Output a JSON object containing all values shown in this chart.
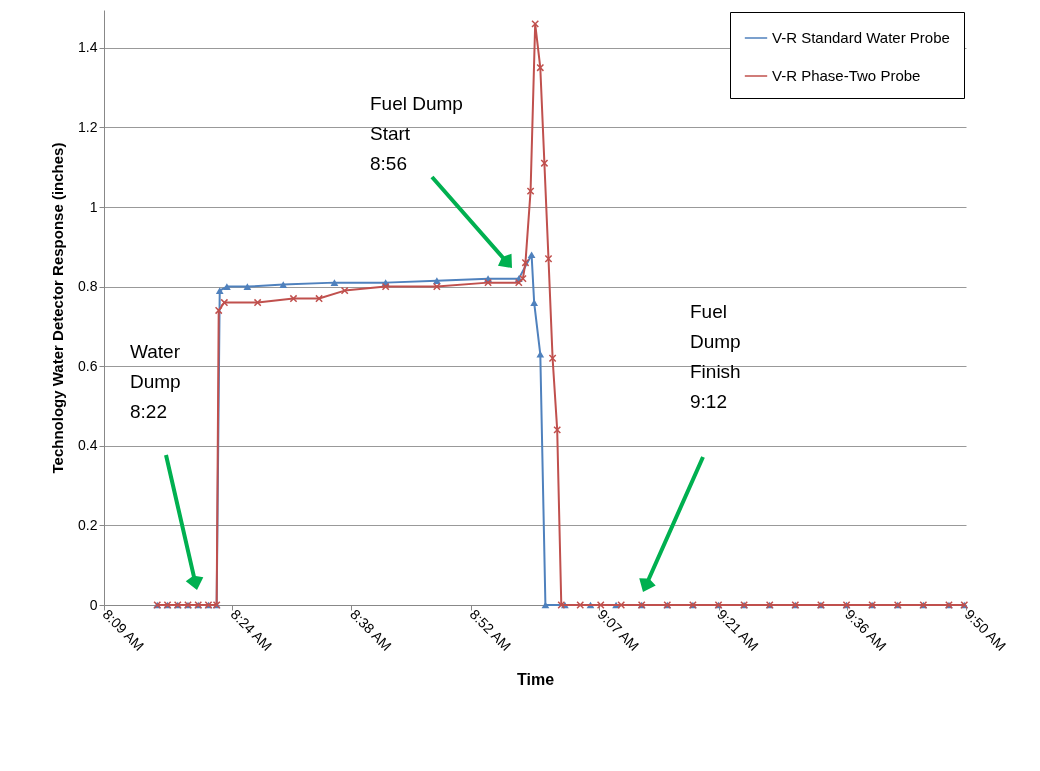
{
  "chart_data": {
    "type": "line",
    "xlabel": "Time",
    "ylabel": "Technology Water Detector Response (inches)",
    "xlim": [
      8.15,
      9.8333
    ],
    "ylim": [
      0,
      1.495
    ],
    "xticks": [
      {
        "value": 8.15,
        "label": "8:09 AM"
      },
      {
        "value": 8.4,
        "label": "8:24 AM"
      },
      {
        "value": 8.6333,
        "label": "8:38 AM"
      },
      {
        "value": 8.8667,
        "label": "8:52 AM"
      },
      {
        "value": 9.1167,
        "label": "9:07 AM"
      },
      {
        "value": 9.35,
        "label": "9:21 AM"
      },
      {
        "value": 9.6,
        "label": "9:36 AM"
      },
      {
        "value": 9.8333,
        "label": "9:50 AM"
      }
    ],
    "yticks": [
      0,
      0.2,
      0.4,
      0.6,
      0.8,
      1,
      1.2,
      1.4
    ],
    "grid": "y",
    "legend": "top right",
    "series": [
      {
        "name": "V-R Standard Water Probe",
        "color": "#4f81bd",
        "marker": "triangle",
        "x": [
          8.254,
          8.274,
          8.294,
          8.314,
          8.334,
          8.354,
          8.37,
          8.376,
          8.39,
          8.43,
          8.5,
          8.6,
          8.7,
          8.8,
          8.9,
          8.96,
          8.985,
          8.99,
          9.002,
          9.012,
          9.05,
          9.1,
          9.15,
          9.2,
          9.25,
          9.3,
          9.35,
          9.4,
          9.45,
          9.5,
          9.55,
          9.6,
          9.65,
          9.7,
          9.75,
          9.8,
          9.83
        ],
        "values": [
          0,
          0,
          0,
          0,
          0,
          0,
          0,
          0.79,
          0.8,
          0.8,
          0.805,
          0.81,
          0.81,
          0.815,
          0.82,
          0.82,
          0.88,
          0.76,
          0.63,
          0,
          0,
          0,
          0,
          0,
          0,
          0,
          0,
          0,
          0,
          0,
          0,
          0,
          0,
          0,
          0,
          0,
          0
        ]
      },
      {
        "name": "V-R Phase-Two Probe",
        "color": "#c0504d",
        "marker": "cross",
        "x": [
          8.254,
          8.274,
          8.294,
          8.314,
          8.334,
          8.354,
          8.37,
          8.374,
          8.385,
          8.45,
          8.52,
          8.57,
          8.62,
          8.7,
          8.8,
          8.9,
          8.96,
          8.968,
          8.973,
          8.983,
          8.992,
          9.002,
          9.01,
          9.018,
          9.026,
          9.035,
          9.043,
          9.08,
          9.12,
          9.16,
          9.2,
          9.25,
          9.3,
          9.35,
          9.4,
          9.45,
          9.5,
          9.55,
          9.6,
          9.65,
          9.7,
          9.75,
          9.8,
          9.83
        ],
        "values": [
          0,
          0,
          0,
          0,
          0,
          0,
          0,
          0.74,
          0.76,
          0.76,
          0.77,
          0.77,
          0.79,
          0.8,
          0.8,
          0.81,
          0.81,
          0.82,
          0.86,
          1.04,
          1.46,
          1.35,
          1.11,
          0.87,
          0.62,
          0.44,
          0,
          0,
          0,
          0,
          0,
          0,
          0,
          0,
          0,
          0,
          0,
          0,
          0,
          0,
          0,
          0,
          0,
          0
        ]
      }
    ],
    "annotations": [
      "Water\nDump\n8:22",
      "Fuel Dump\nStart\n 8:56",
      "Fuel\nDump\nFinish\n9:12"
    ]
  }
}
